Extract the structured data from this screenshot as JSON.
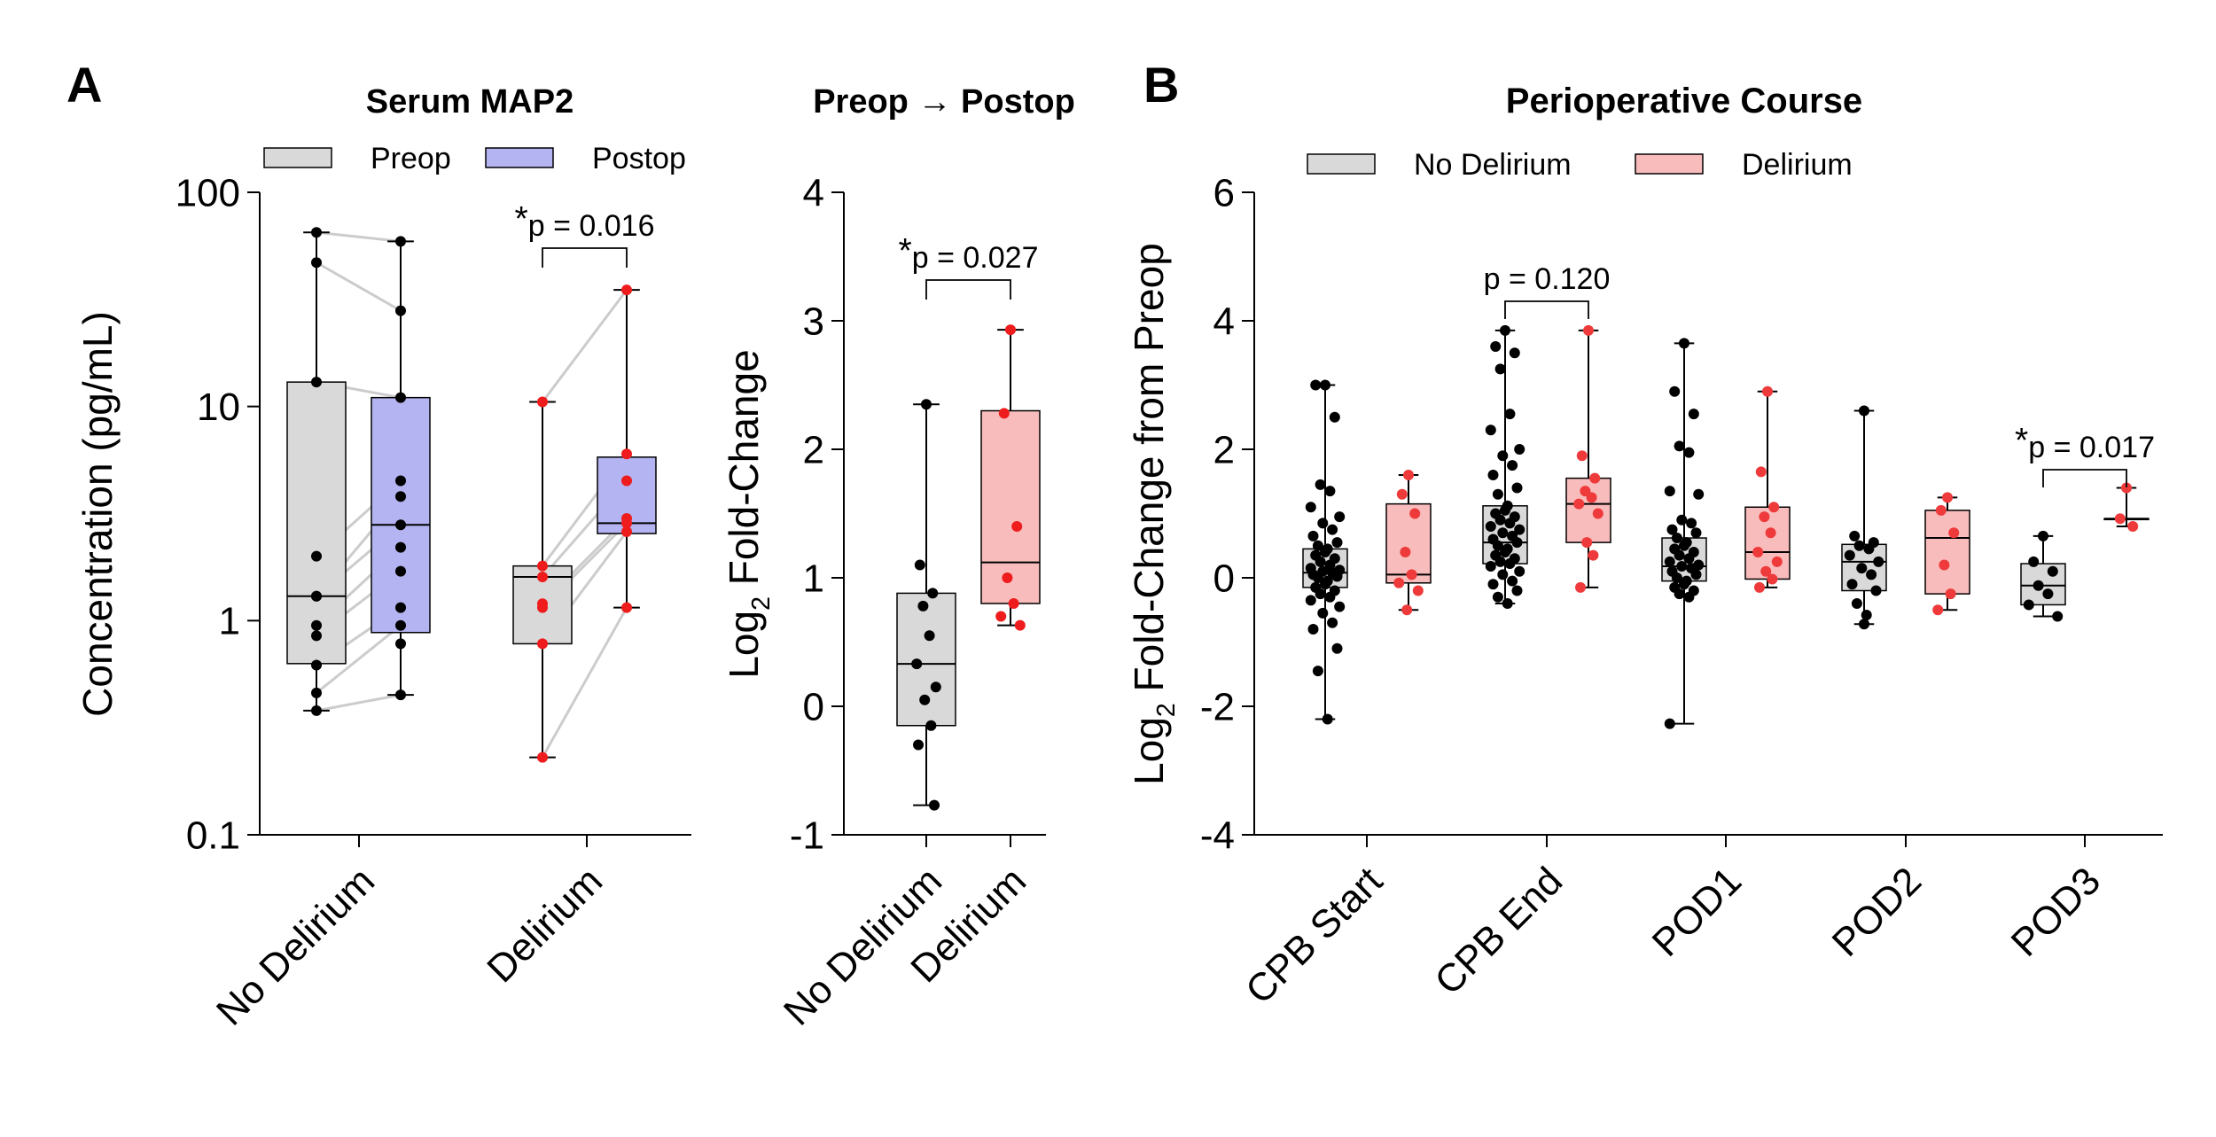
{
  "panel_labels": {
    "a": "A",
    "b": "B"
  },
  "chart_data": [
    {
      "id": "serum_map2",
      "type": "box",
      "title": "Serum MAP2",
      "yscale": "log",
      "ylabel": "Concentration (pg/mL)",
      "ylim": [
        0.1,
        100
      ],
      "yticks": [
        0.1,
        1,
        10,
        100
      ],
      "ytick_labels": [
        "0.1",
        "1",
        "10",
        "100"
      ],
      "categories": [
        "No Delirium",
        "Delirium"
      ],
      "legend": [
        {
          "name": "Preop",
          "color": "#d9d9d9"
        },
        {
          "name": "Postop",
          "color": "#b4b4f2"
        }
      ],
      "boxes": [
        {
          "category": "No Delirium",
          "series": "Preop",
          "color": "#d9d9d9",
          "min": 0.38,
          "q1": 0.63,
          "median": 1.3,
          "q3": 13,
          "max": 65,
          "points": [
            65,
            47,
            13,
            2.0,
            1.3,
            1.3,
            0.95,
            0.85,
            0.62,
            0.46,
            0.38
          ]
        },
        {
          "category": "No Delirium",
          "series": "Postop",
          "color": "#b4b4f2",
          "min": 0.45,
          "q1": 0.88,
          "median": 2.8,
          "q3": 11,
          "max": 59,
          "points": [
            59,
            28,
            11,
            4.5,
            3.8,
            2.8,
            2.2,
            1.7,
            1.15,
            0.95,
            0.78,
            0.45
          ]
        },
        {
          "category": "Delirium",
          "series": "Preop",
          "color": "#d9d9d9",
          "min": 0.23,
          "q1": 0.78,
          "median": 1.6,
          "q3": 1.8,
          "max": 10.5,
          "points": [
            10.5,
            1.8,
            1.6,
            1.2,
            1.15,
            0.78,
            0.23
          ]
        },
        {
          "category": "Delirium",
          "series": "Postop",
          "color": "#b4b4f2",
          "min": 1.15,
          "q1": 2.55,
          "median": 2.85,
          "q3": 5.8,
          "max": 35,
          "points": [
            35,
            6.0,
            4.5,
            3.0,
            2.85,
            2.6,
            1.15
          ]
        }
      ],
      "pairs": [
        [
          65,
          59
        ],
        [
          47,
          28
        ],
        [
          13,
          11
        ],
        [
          2.0,
          4.5
        ],
        [
          1.3,
          3.8
        ],
        [
          1.3,
          2.8
        ],
        [
          0.95,
          2.2
        ],
        [
          0.85,
          1.7
        ],
        [
          0.62,
          1.15
        ],
        [
          0.46,
          0.95
        ],
        [
          0.38,
          0.45
        ],
        [
          10.5,
          35
        ],
        [
          1.8,
          6.0
        ],
        [
          1.6,
          4.5
        ],
        [
          1.2,
          3.0
        ],
        [
          1.15,
          2.85
        ],
        [
          0.78,
          2.6
        ],
        [
          0.23,
          1.15
        ]
      ],
      "annotation": {
        "star": "*",
        "text": "p = 0.016"
      }
    },
    {
      "id": "fold_change",
      "type": "box",
      "title": "Preop → Postop",
      "ylabel_main": "Log",
      "ylabel_sub": "2",
      "ylabel_rest": " Fold-Change",
      "ylim": [
        -1,
        4
      ],
      "yticks": [
        -1,
        0,
        1,
        2,
        3,
        4
      ],
      "ytick_labels": [
        "-1",
        "0",
        "1",
        "2",
        "3",
        "4"
      ],
      "categories": [
        "No Delirium",
        "Delirium"
      ],
      "boxes": [
        {
          "category": "No Delirium",
          "color": "#d9d9d9",
          "min": -0.77,
          "q1": -0.15,
          "median": 0.33,
          "q3": 0.88,
          "max": 2.35,
          "points": [
            2.35,
            1.1,
            0.88,
            0.78,
            0.55,
            0.33,
            0.15,
            0.05,
            -0.15,
            -0.3,
            -0.77
          ]
        },
        {
          "category": "Delirium",
          "color": "#f9bcbc",
          "min": 0.63,
          "q1": 0.8,
          "median": 1.12,
          "q3": 2.3,
          "max": 2.93,
          "points": [
            2.93,
            2.28,
            1.4,
            1.0,
            0.8,
            0.7,
            0.63
          ]
        }
      ],
      "annotation": {
        "star": "*",
        "text": "p = 0.027"
      }
    },
    {
      "id": "perioperative_course",
      "type": "box",
      "title": "Perioperative Course",
      "ylabel_main": "Log",
      "ylabel_sub": "2",
      "ylabel_rest": " Fold-Change from Preop",
      "ylim": [
        -4,
        6
      ],
      "yticks": [
        -4,
        -2,
        0,
        2,
        4,
        6
      ],
      "ytick_labels": [
        "-4",
        "-2",
        "0",
        "2",
        "4",
        "6"
      ],
      "categories": [
        "CPB Start",
        "CPB End",
        "POD1",
        "POD2",
        "POD3"
      ],
      "legend": [
        {
          "name": "No Delirium",
          "color": "#d9d9d9"
        },
        {
          "name": "Delirium",
          "color": "#f9bcbc"
        }
      ],
      "series": [
        {
          "name": "No Delirium",
          "color": "#d9d9d9",
          "point_color": "#000000",
          "boxes": [
            {
              "min": -2.2,
              "q1": -0.15,
              "median": 0.08,
              "q3": 0.45,
              "max": 3.0,
              "points": [
                3.0,
                3.0,
                2.5,
                1.45,
                1.35,
                1.1,
                0.95,
                0.85,
                0.75,
                0.65,
                0.55,
                0.5,
                0.45,
                0.4,
                0.35,
                0.3,
                0.25,
                0.2,
                0.15,
                0.12,
                0.1,
                0.08,
                0.05,
                0.02,
                0.0,
                -0.05,
                -0.1,
                -0.15,
                -0.2,
                -0.25,
                -0.3,
                -0.35,
                -0.45,
                -0.55,
                -0.7,
                -0.8,
                -1.1,
                -1.45,
                -2.2
              ]
            },
            {
              "min": -0.4,
              "q1": 0.22,
              "median": 0.55,
              "q3": 1.12,
              "max": 3.85,
              "points": [
                3.85,
                3.6,
                3.5,
                3.25,
                2.55,
                2.3,
                2.0,
                1.9,
                1.75,
                1.6,
                1.4,
                1.3,
                1.12,
                1.05,
                1.0,
                0.95,
                0.9,
                0.85,
                0.8,
                0.75,
                0.7,
                0.65,
                0.6,
                0.55,
                0.5,
                0.45,
                0.4,
                0.35,
                0.3,
                0.25,
                0.22,
                0.18,
                0.1,
                0.05,
                -0.05,
                -0.1,
                -0.2,
                -0.3,
                -0.4
              ]
            },
            {
              "min": -2.27,
              "q1": -0.05,
              "median": 0.18,
              "q3": 0.62,
              "max": 3.65,
              "points": [
                3.65,
                2.9,
                2.55,
                2.05,
                1.95,
                1.35,
                1.3,
                0.9,
                0.85,
                0.75,
                0.7,
                0.62,
                0.55,
                0.5,
                0.45,
                0.4,
                0.35,
                0.3,
                0.25,
                0.2,
                0.18,
                0.15,
                0.1,
                0.05,
                0.0,
                -0.05,
                -0.1,
                -0.15,
                -0.2,
                -0.25,
                -0.3,
                -2.27
              ]
            },
            {
              "min": -0.72,
              "q1": -0.2,
              "median": 0.25,
              "q3": 0.52,
              "max": 2.6,
              "points": [
                2.6,
                0.65,
                0.55,
                0.5,
                0.45,
                0.35,
                0.25,
                0.15,
                0.05,
                -0.1,
                -0.2,
                -0.4,
                -0.58,
                -0.72
              ]
            },
            {
              "min": -0.6,
              "q1": -0.42,
              "median": -0.12,
              "q3": 0.22,
              "max": 0.65,
              "points": [
                0.65,
                0.25,
                0.1,
                -0.12,
                -0.25,
                -0.42,
                -0.6
              ]
            }
          ]
        },
        {
          "name": "Delirium",
          "color": "#f9bcbc",
          "point_color": "#ee3a3a",
          "boxes": [
            {
              "min": -0.5,
              "q1": -0.08,
              "median": 0.05,
              "q3": 1.15,
              "max": 1.6,
              "points": [
                1.6,
                1.3,
                1.0,
                0.4,
                0.05,
                -0.08,
                -0.2,
                -0.5
              ]
            },
            {
              "min": -0.15,
              "q1": 0.55,
              "median": 1.15,
              "q3": 1.55,
              "max": 3.85,
              "points": [
                3.85,
                1.9,
                1.55,
                1.35,
                1.25,
                1.15,
                1.0,
                0.55,
                0.35,
                -0.15
              ]
            },
            {
              "min": -0.15,
              "q1": -0.02,
              "median": 0.4,
              "q3": 1.1,
              "max": 2.9,
              "points": [
                2.9,
                1.65,
                1.1,
                0.95,
                0.7,
                0.4,
                0.25,
                0.1,
                -0.02,
                -0.15
              ]
            },
            {
              "min": -0.5,
              "q1": -0.25,
              "median": 0.62,
              "q3": 1.05,
              "max": 1.25,
              "points": [
                1.25,
                1.05,
                0.7,
                0.2,
                -0.25,
                -0.5
              ]
            },
            {
              "min": 0.8,
              "q1": 0.92,
              "median": 0.92,
              "q3": 0.92,
              "max": 1.4,
              "points": [
                1.4,
                0.92,
                0.8
              ]
            }
          ]
        }
      ],
      "annotations": [
        {
          "category": "CPB End",
          "star": "",
          "text": "p = 0.120"
        },
        {
          "category": "POD3",
          "star": "*",
          "text": "p = 0.017"
        }
      ]
    }
  ]
}
